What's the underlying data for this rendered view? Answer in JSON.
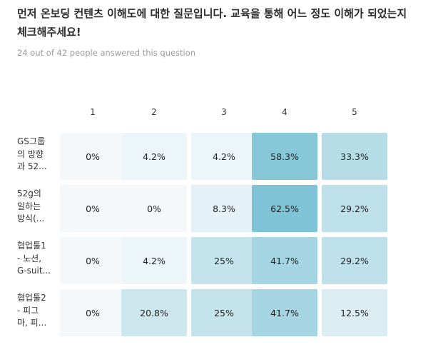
{
  "question": {
    "title_line1": "먼저 온보딩 컨텐츠 이해도에 대한 질문입니다. 교육을 통해 어느 정도 이해가 되었는지",
    "title_line2": "체크해주세요!",
    "meta": "24 out of 42 people answered this question"
  },
  "columns": [
    "1",
    "2",
    "3",
    "4",
    "5"
  ],
  "rows": [
    {
      "label_lines": [
        "GS그룹",
        "의 방향",
        "과 52..."
      ],
      "values": [
        "0%",
        "4.2%",
        "4.2%",
        "58.3%",
        "33.3%"
      ],
      "levels": [
        0,
        0.042,
        0.042,
        0.583,
        0.333
      ]
    },
    {
      "label_lines": [
        "52g의",
        "일하는",
        "방식(..."
      ],
      "values": [
        "0%",
        "0%",
        "8.3%",
        "62.5%",
        "29.2%"
      ],
      "levels": [
        0,
        0,
        0.083,
        0.625,
        0.292
      ]
    },
    {
      "label_lines": [
        "협업툴1",
        "- 노션,",
        "G-suit..."
      ],
      "values": [
        "0%",
        "4.2%",
        "25%",
        "41.7%",
        "29.2%"
      ],
      "levels": [
        0,
        0.042,
        0.25,
        0.417,
        0.292
      ]
    },
    {
      "label_lines": [
        "협업툴2",
        "- 피그",
        "마, 피..."
      ],
      "values": [
        "0%",
        "20.8%",
        "25%",
        "41.7%",
        "12.5%"
      ],
      "levels": [
        0,
        0.208,
        0.25,
        0.417,
        0.125
      ]
    }
  ],
  "colors": {
    "heat_low": "#f4f8fb",
    "heat_high": "#7ec4d6"
  }
}
